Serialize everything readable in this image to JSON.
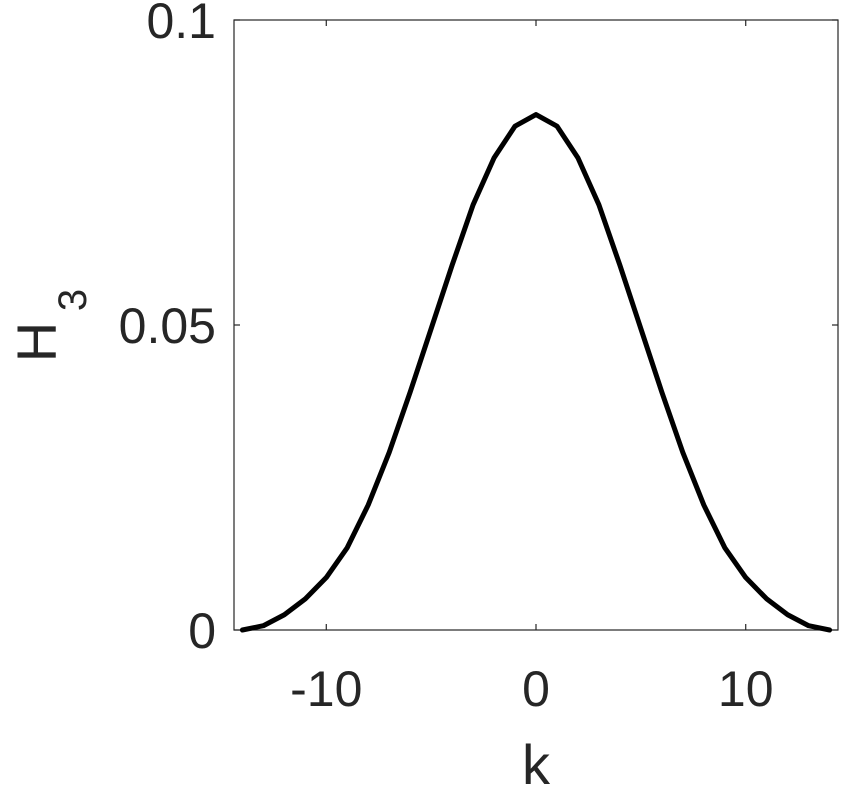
{
  "chart_data": {
    "type": "line",
    "title": "",
    "xlabel": "k",
    "ylabel": "H",
    "ylabel_subscript": "3",
    "xlim": [
      -14.4,
      14.4
    ],
    "ylim": [
      0,
      0.1
    ],
    "xticks": [
      -10,
      0,
      10
    ],
    "xtick_labels": [
      "-10",
      "0",
      "10"
    ],
    "yticks": [
      0,
      0.05,
      0.1
    ],
    "ytick_labels": [
      "0",
      "0.05",
      "0.1"
    ],
    "grid": false,
    "line_color": "#000000",
    "series": [
      {
        "x": [
          -14,
          -13,
          -12,
          -11,
          -10,
          -9,
          -8,
          -7,
          -6,
          -5,
          -4,
          -3,
          -2,
          -1,
          0,
          1,
          2,
          3,
          4,
          5,
          6,
          7,
          8,
          9,
          10,
          11,
          12,
          13,
          14
        ],
        "values": [
          0.0,
          0.0007,
          0.0025,
          0.0051,
          0.0086,
          0.0135,
          0.0205,
          0.0291,
          0.039,
          0.0494,
          0.0598,
          0.0697,
          0.0774,
          0.0826,
          0.0845,
          0.0826,
          0.0774,
          0.0697,
          0.0598,
          0.0494,
          0.039,
          0.0291,
          0.0205,
          0.0135,
          0.0086,
          0.0051,
          0.0025,
          0.0007,
          0.0
        ]
      }
    ]
  }
}
